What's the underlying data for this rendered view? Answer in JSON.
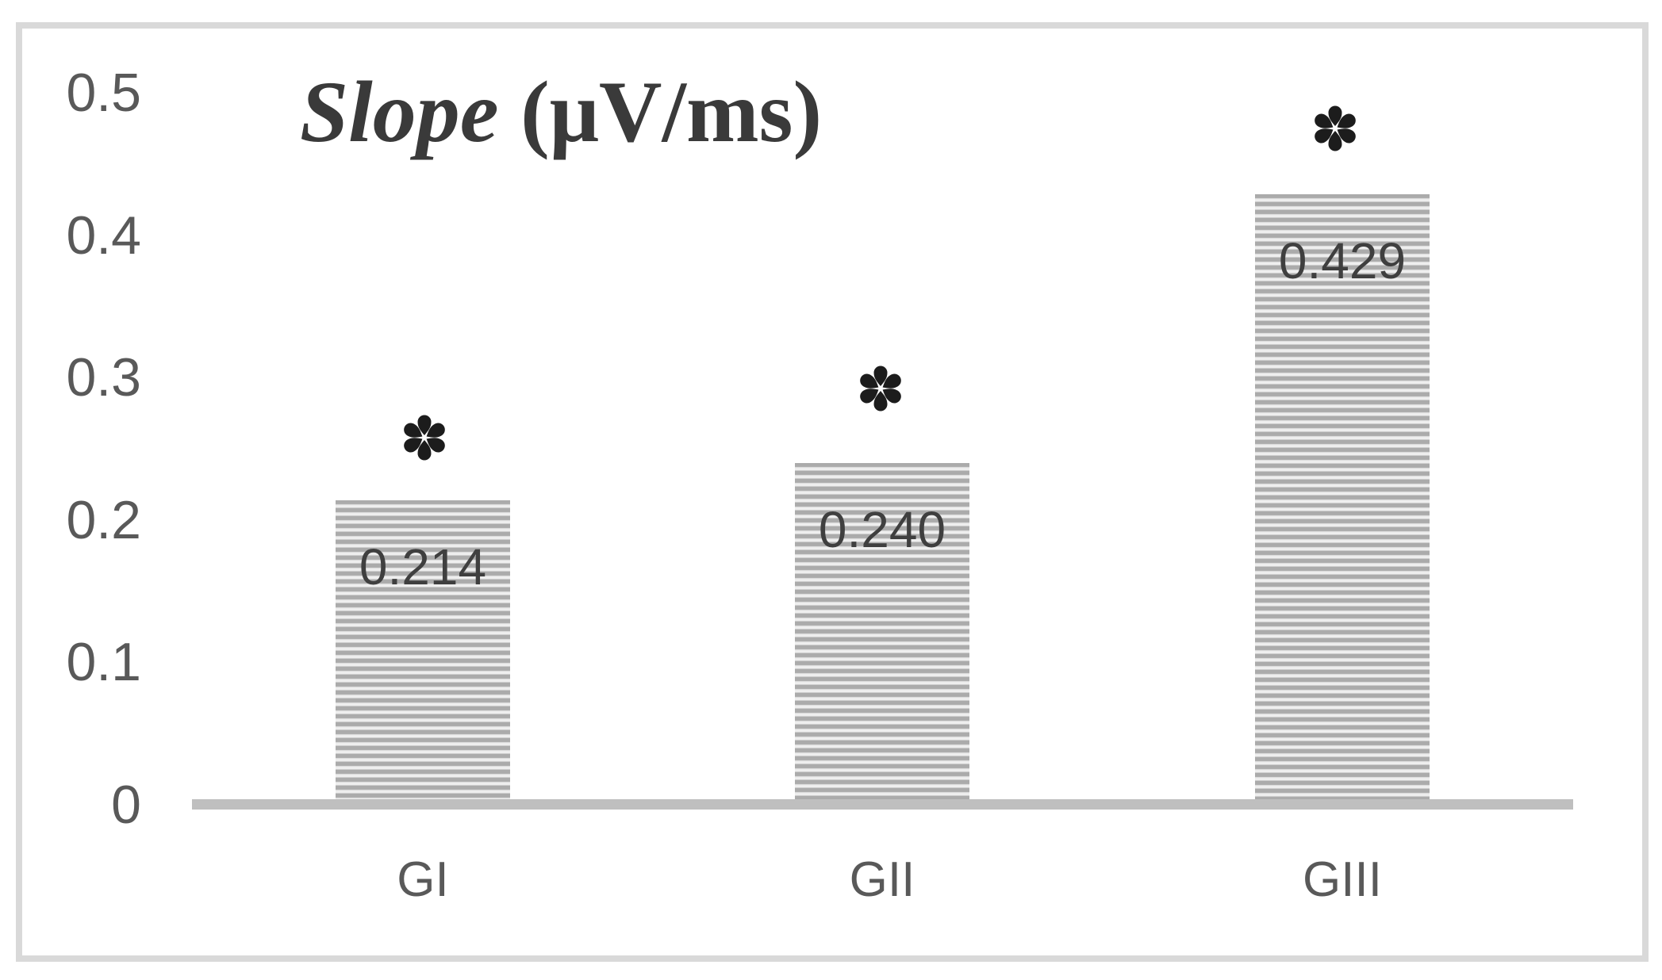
{
  "chart_data": {
    "type": "bar",
    "title": {
      "name_part": "Slope",
      "unit_part": " (μV/ms)",
      "full": "Slope (μV/ms)"
    },
    "categories": [
      "GI",
      "GII",
      "GIII"
    ],
    "values": [
      0.214,
      0.24,
      0.429
    ],
    "data_labels": [
      "0.214",
      "0.240",
      "0.429"
    ],
    "significance_markers": [
      "*",
      "*",
      "*"
    ],
    "yticks": [
      "0.5",
      "0.4",
      "0.3",
      "0.2",
      "0.1",
      "0"
    ],
    "ytick_values": [
      0.5,
      0.4,
      0.3,
      0.2,
      0.1,
      0
    ],
    "ylim": [
      0,
      0.5
    ],
    "xlabel": "",
    "ylabel": "",
    "grid": false,
    "legend": "none",
    "bar_fill_pattern": "horizontal-stripes",
    "colors": {
      "bg": "#ffffff",
      "frame": "#d9d9d9",
      "axis": "#bfbfbf",
      "tick": "#595959",
      "cat": "#595959",
      "title": "#3a3a3a",
      "datalabel": "#3f3f3f",
      "star": "#1c1c1c",
      "stripe-dark": "#ababab",
      "stripe-light": "#f2f2f2"
    }
  }
}
